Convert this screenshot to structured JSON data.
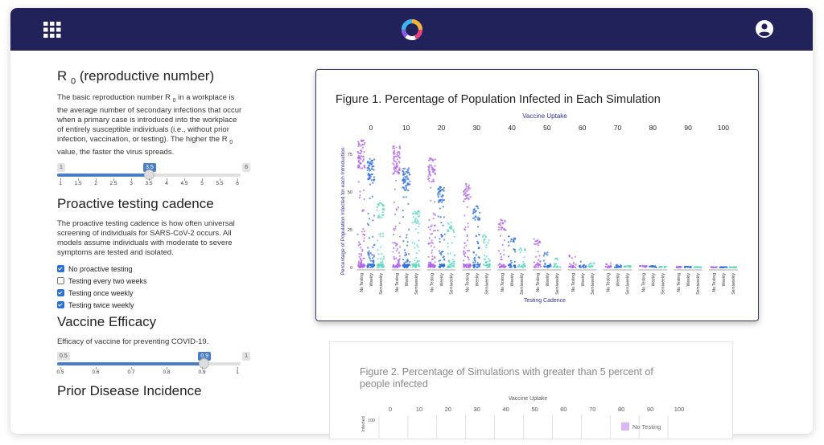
{
  "header": {
    "apps_icon": "grid-apps-icon",
    "logo_icon": "ring-logo-icon",
    "account_icon": "account-circle-icon",
    "bg": "#22225a"
  },
  "r0": {
    "title_main": "R",
    "title_sub": "0",
    "title_rest": " (reproductive number)",
    "desc_1": "The basic reproduction number R",
    "desc_sub": "0",
    "desc_2": " in a workplace is the average number of secondary infections that occur when a primary case is introduced into the workplace of entirely susceptible individuals (i.e., without prior infection, vaccination, or testing). The higher the R",
    "desc_sub2": "0",
    "desc_3": " value, the faster the virus spreads.",
    "min": "1",
    "max": "6",
    "value": "3.5",
    "value_fraction": 0.5,
    "ticks": [
      "1",
      "1.5",
      "2",
      "2.5",
      "3",
      "3.5",
      "4",
      "4.5",
      "5",
      "5.5",
      "6"
    ]
  },
  "testing": {
    "title": "Proactive testing cadence",
    "desc": "The proactive testing cadence is how often universal screening of individuals for SARS-CoV-2 occurs. All models assume individuals with moderate to severe symptoms are tested and isolated.",
    "options": [
      {
        "label": "No proactive testing",
        "checked": true
      },
      {
        "label": "Testing every two weeks",
        "checked": false
      },
      {
        "label": "Testing once weekly",
        "checked": true
      },
      {
        "label": "Testing twice weekly",
        "checked": true
      }
    ]
  },
  "vaccine": {
    "title": "Vaccine Efficacy",
    "desc": "Efficacy of vaccine for preventing COVID-19.",
    "min": "0.5",
    "max": "1",
    "value": "0.9",
    "value_fraction": 0.8,
    "ticks": [
      "0.5",
      "0.6",
      "0.7",
      "0.8",
      "0.9",
      "1"
    ]
  },
  "prior": {
    "title": "Prior Disease Incidence"
  },
  "figure1": {
    "title": "Figure 1. Percentage of Population Infected in Each Simulation",
    "facet_title": "Vaccine Uptake",
    "ylabel": "Percentage of Population Infected for each Introduction",
    "xlabel": "Testing Cadence",
    "facets": [
      "0",
      "10",
      "20",
      "30",
      "40",
      "50",
      "60",
      "70",
      "80",
      "90",
      "100"
    ],
    "categories": [
      "No Testing",
      "Weekly",
      "Semiweekly"
    ],
    "yticks": [
      "0",
      "25",
      "50",
      "75"
    ],
    "colors": {
      "No Testing": "#b065e6",
      "Weekly": "#2f6fd8",
      "Semiweekly": "#5fd6c0"
    }
  },
  "figure2": {
    "title": "Figure 2. Percentage of Simulations with greater than 5 percent of people infected",
    "facet_title": "Vaccine Uptake",
    "ylabel": "Infected",
    "facets": [
      "0",
      "10",
      "20",
      "30",
      "40",
      "50",
      "60",
      "70",
      "80",
      "90",
      "100"
    ],
    "ytick": "100",
    "legend": "No Testing",
    "legend_color": "#d9b6f5"
  },
  "chart_data": {
    "type": "scatter",
    "title": "Figure 1. Percentage of Population Infected in Each Simulation",
    "xlabel": "Testing Cadence",
    "ylabel": "Percentage of Population Infected for each Introduction",
    "facet_label": "Vaccine Uptake",
    "facets": [
      "0",
      "10",
      "20",
      "30",
      "40",
      "50",
      "60",
      "70",
      "80",
      "90",
      "100"
    ],
    "categories": [
      "No Testing",
      "Weekly",
      "Semiweekly"
    ],
    "ylim": [
      0,
      85
    ],
    "series": [
      {
        "name": "No Testing",
        "values": [
          [
            80,
            2
          ],
          [
            75,
            2
          ],
          [
            68,
            2
          ],
          [
            52,
            2
          ],
          [
            30,
            2
          ],
          [
            18,
            2
          ],
          [
            8,
            1
          ],
          [
            3,
            1
          ],
          [
            1,
            1
          ],
          [
            0.5,
            0.5
          ],
          [
            0.3,
            0.3
          ]
        ]
      },
      {
        "name": "Weekly",
        "values": [
          [
            68,
            2
          ],
          [
            62,
            2
          ],
          [
            52,
            2
          ],
          [
            38,
            2
          ],
          [
            20,
            2
          ],
          [
            10,
            1
          ],
          [
            4,
            1
          ],
          [
            2,
            1
          ],
          [
            1,
            1
          ],
          [
            0.5,
            0.5
          ],
          [
            0.3,
            0.3
          ]
        ]
      },
      {
        "name": "Semiweekly",
        "values": [
          [
            40,
            2
          ],
          [
            35,
            2
          ],
          [
            28,
            2
          ],
          [
            20,
            2
          ],
          [
            12,
            1
          ],
          [
            6,
            1
          ],
          [
            3,
            1
          ],
          [
            1,
            1
          ],
          [
            0.5,
            0.5
          ],
          [
            0.3,
            0.3
          ],
          [
            0.2,
            0.2
          ]
        ]
      }
    ]
  }
}
